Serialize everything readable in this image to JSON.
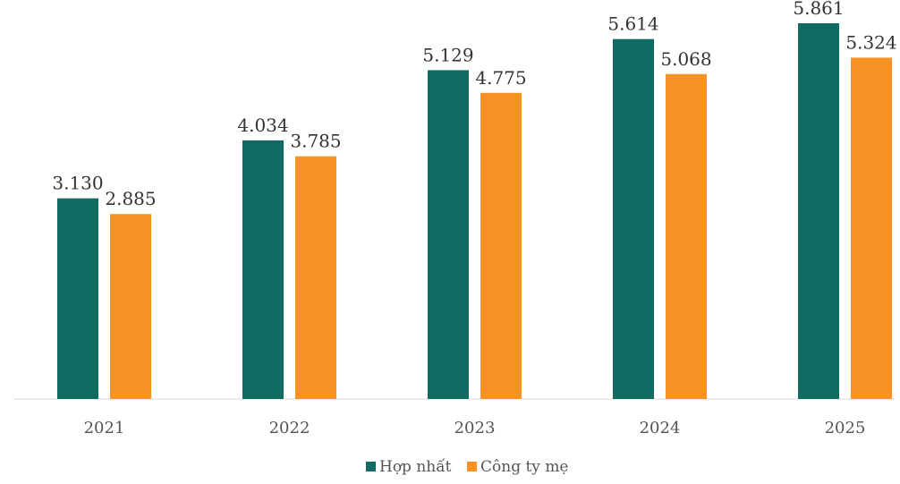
{
  "chart_data": {
    "type": "bar",
    "categories": [
      "2021",
      "2022",
      "2023",
      "2024",
      "2025"
    ],
    "series": [
      {
        "name": "Hợp nhất",
        "values": [
          3.13,
          4.034,
          5.129,
          5.614,
          5.861
        ],
        "labels": [
          "3.130",
          "4.034",
          "5.129",
          "5.614",
          "5.861"
        ]
      },
      {
        "name": "Công ty mẹ",
        "values": [
          2.885,
          3.785,
          4.775,
          5.068,
          5.324
        ],
        "labels": [
          "2.885",
          "3.785",
          "4.775",
          "5.068",
          "5.324"
        ]
      }
    ],
    "colors": [
      "#116b62",
      "#f79325"
    ],
    "ylim": [
      0,
      6.0
    ],
    "grid": false,
    "legend_position": "bottom-center"
  }
}
